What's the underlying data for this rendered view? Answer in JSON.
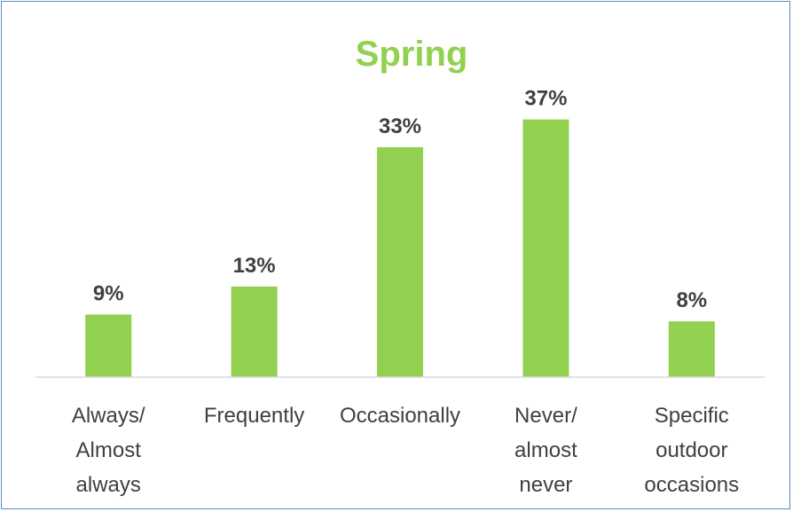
{
  "chart_data": {
    "type": "bar",
    "title": "Spring",
    "xlabel": "",
    "ylabel": "",
    "ylim": [
      0,
      40
    ],
    "grid": false,
    "legend": "none",
    "value_suffix": "%",
    "categories": [
      "Always/ Almost always",
      "Frequently",
      "Occasionally",
      "Never/ almost never",
      "Specific outdoor occasions"
    ],
    "category_lines": [
      [
        "Always/",
        "Almost",
        "always"
      ],
      [
        "Frequently"
      ],
      [
        "Occasionally"
      ],
      [
        "Never/",
        "almost",
        "never"
      ],
      [
        "Specific",
        "outdoor",
        "occasions"
      ]
    ],
    "values": [
      9,
      13,
      33,
      37,
      8
    ],
    "data_labels": [
      "9%",
      "13%",
      "33%",
      "37%",
      "8%"
    ],
    "colors": {
      "bar": "#92d050",
      "title": "#92d050",
      "axis": "#d9d9d9",
      "border": "#5b8ac6",
      "text": "#404040"
    }
  }
}
